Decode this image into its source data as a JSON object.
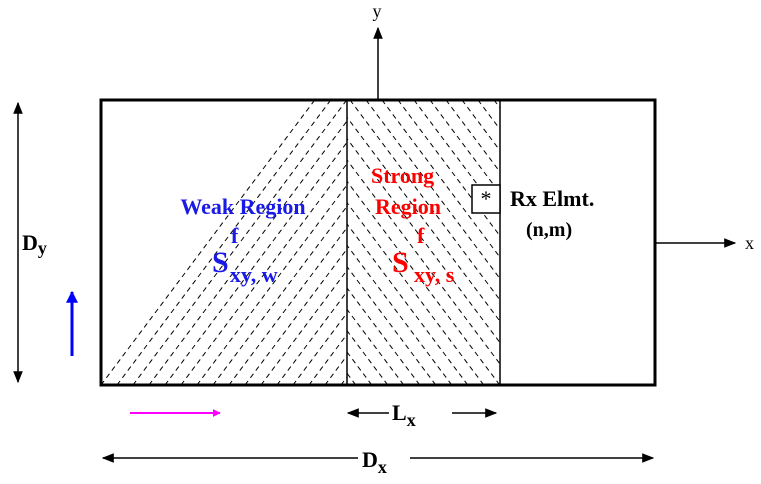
{
  "axes": {
    "x_label": "x",
    "y_label": "y"
  },
  "weak_region": {
    "title": "Weak Region",
    "symbol": "S",
    "superscript": "f",
    "subscript": "xy, w"
  },
  "strong_region": {
    "title_line1": "Strong",
    "title_line2": "Region",
    "symbol": "S",
    "superscript": "f",
    "subscript": "xy, s"
  },
  "rx_element": {
    "marker": "*",
    "label": "Rx Elmt.",
    "index": "(n,m)"
  },
  "dimensions": {
    "dy_main": "D",
    "dy_sub": "y",
    "dx_main": "D",
    "dx_sub": "x",
    "lx_main": "L",
    "lx_sub": "x"
  },
  "colors": {
    "weak": "#1a1ae6",
    "strong": "#ff0000",
    "blue_arrow": "#0000ff",
    "magenta_arrow": "#ff00ff",
    "line": "#000000"
  }
}
